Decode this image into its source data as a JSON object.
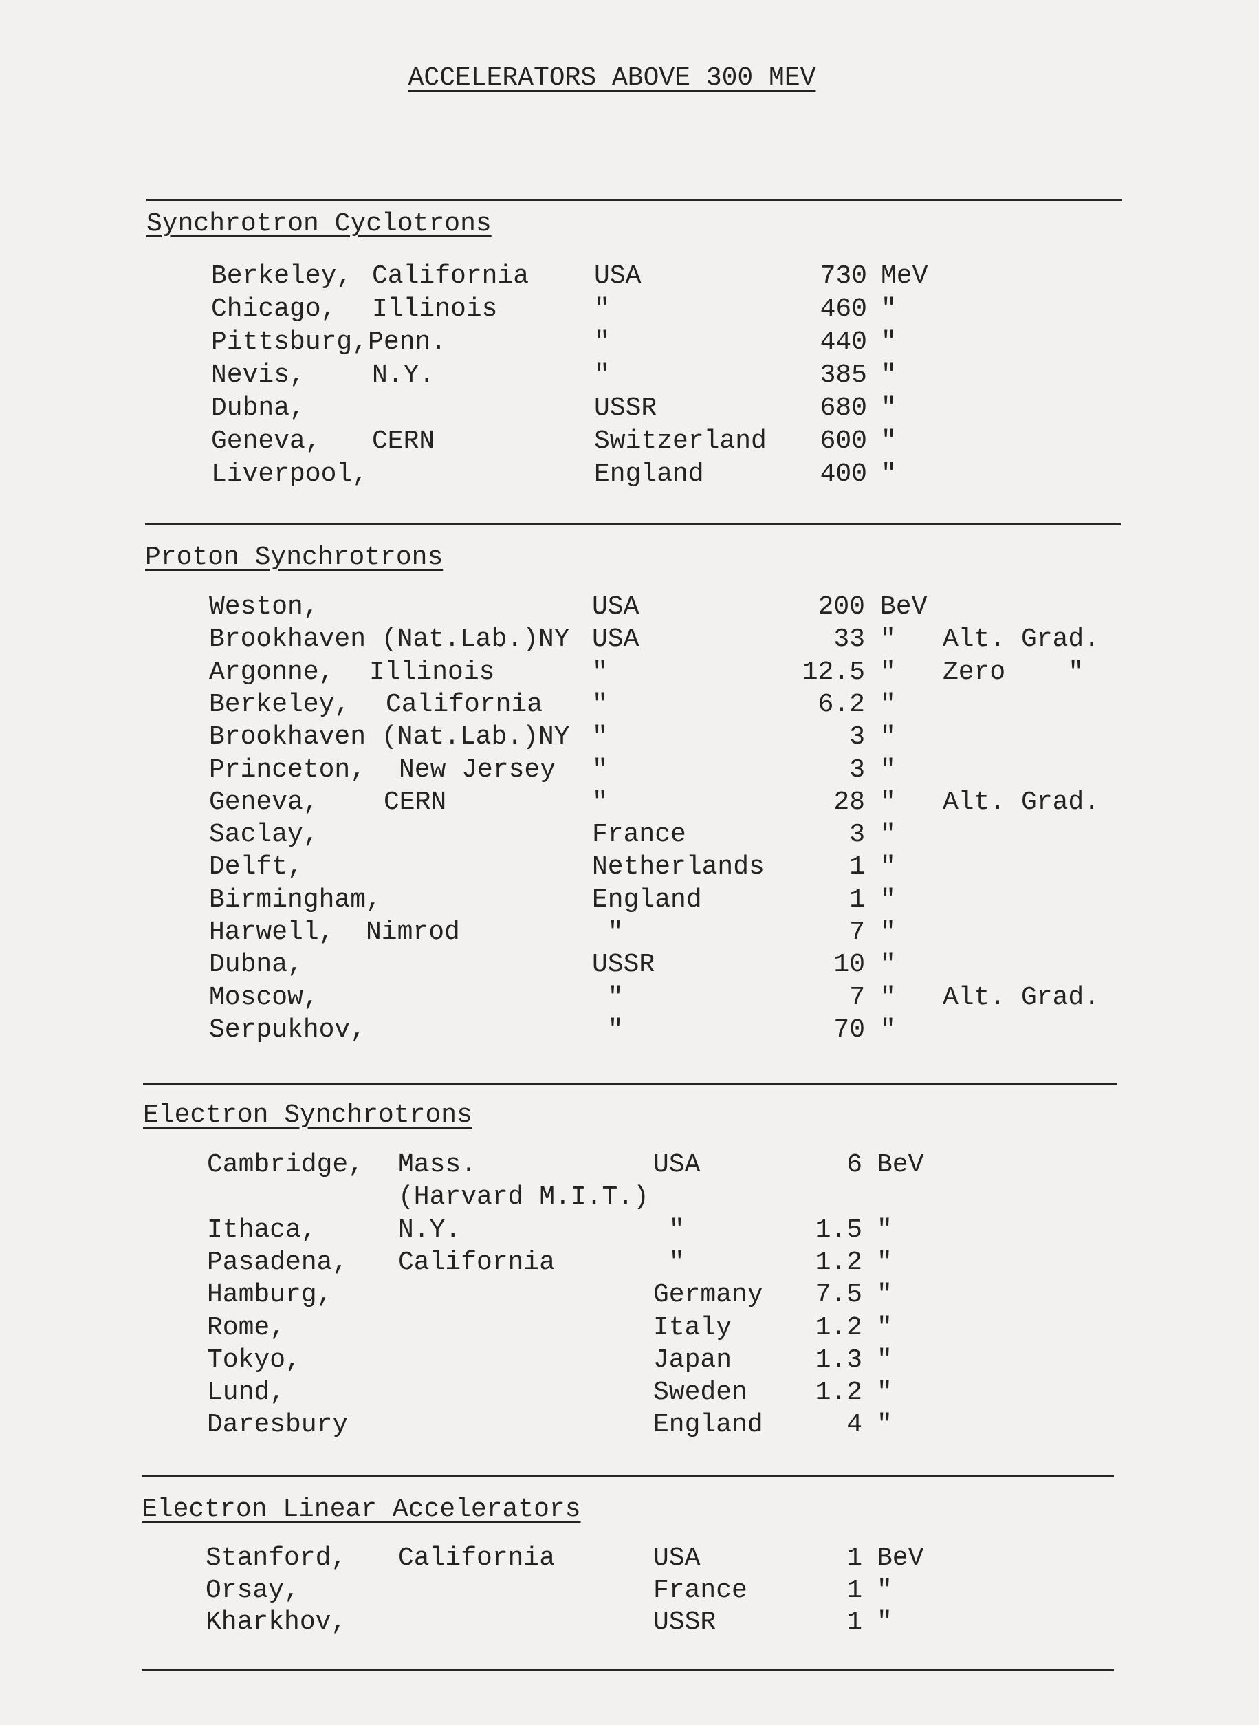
{
  "title": "ACCELERATORS ABOVE 300 MEV",
  "sections": [
    {
      "heading": "Synchrotron Cyclotrons",
      "rows": [
        {
          "place": "Berkeley,",
          "sub": "California",
          "country": "USA",
          "value": "730",
          "unit": "MeV",
          "note": ""
        },
        {
          "place": "Chicago,",
          "sub": "Illinois",
          "country": "\"",
          "value": "460",
          "unit": "\"",
          "note": ""
        },
        {
          "place": "Pittsburg,Penn.",
          "sub": "",
          "country": "\"",
          "value": "440",
          "unit": "\"",
          "note": ""
        },
        {
          "place": "Nevis,",
          "sub": "N.Y.",
          "country": "\"",
          "value": "385",
          "unit": "\"",
          "note": ""
        },
        {
          "place": "Dubna,",
          "sub": "",
          "country": "USSR",
          "value": "680",
          "unit": "\"",
          "note": ""
        },
        {
          "place": "Geneva,",
          "sub": "CERN",
          "country": "Switzerland",
          "value": "600",
          "unit": "\"",
          "note": ""
        },
        {
          "place": "Liverpool,",
          "sub": "",
          "country": "England",
          "value": "400",
          "unit": "\"",
          "note": ""
        }
      ]
    },
    {
      "heading": "Proton Synchrotrons",
      "rows": [
        {
          "place": "Weston,",
          "sub": "",
          "country": "USA",
          "value": "200",
          "unit": "BeV",
          "note": ""
        },
        {
          "place": "Brookhaven (Nat.Lab.)NY",
          "sub": "",
          "country": "USA",
          "value": "33",
          "unit": "\"",
          "note": "Alt. Grad."
        },
        {
          "place": "Argonne,",
          "sub": "Illinois",
          "country": "\"",
          "value": "12.5",
          "unit": "\"",
          "note": "Zero    \""
        },
        {
          "place": "Berkeley,",
          "sub": "California",
          "country": "\"",
          "value": "6.2",
          "unit": "\"",
          "note": ""
        },
        {
          "place": "Brookhaven (Nat.Lab.)NY",
          "sub": "",
          "country": "\"",
          "value": "3",
          "unit": "\"",
          "note": ""
        },
        {
          "place": "Princeton,",
          "sub": "New Jersey",
          "country": "\"",
          "value": "3",
          "unit": "\"",
          "note": ""
        },
        {
          "place": "Geneva,",
          "sub": "CERN",
          "country": "\"",
          "value": "28",
          "unit": "\"",
          "note": "Alt. Grad."
        },
        {
          "place": "Saclay,",
          "sub": "",
          "country": "France",
          "value": "3",
          "unit": "\"",
          "note": ""
        },
        {
          "place": "Delft,",
          "sub": "",
          "country": "Netherlands",
          "value": "1",
          "unit": "\"",
          "note": ""
        },
        {
          "place": "Birmingham,",
          "sub": "",
          "country": "England",
          "value": "1",
          "unit": "\"",
          "note": ""
        },
        {
          "place": "Harwell,",
          "sub": "Nimrod",
          "country": " \"",
          "value": "7",
          "unit": "\"",
          "note": ""
        },
        {
          "place": "Dubna,",
          "sub": "",
          "country": "USSR",
          "value": "10",
          "unit": "\"",
          "note": ""
        },
        {
          "place": "Moscow,",
          "sub": "",
          "country": " \"",
          "value": "7",
          "unit": "\"",
          "note": "Alt. Grad."
        },
        {
          "place": "Serpukhov,",
          "sub": "",
          "country": " \"",
          "value": "70",
          "unit": "\"",
          "note": ""
        }
      ]
    },
    {
      "heading": "Electron Synchrotrons",
      "rows": [
        {
          "place": "Cambridge,",
          "sub": "Mass.",
          "country": "USA",
          "value": "6",
          "unit": "BeV",
          "note": ""
        },
        {
          "place": "",
          "sub": "(Harvard M.I.T.)",
          "country": "",
          "value": "",
          "unit": "",
          "note": ""
        },
        {
          "place": "Ithaca,",
          "sub": "N.Y.",
          "country": " \"",
          "value": "1.5",
          "unit": "\"",
          "note": ""
        },
        {
          "place": "Pasadena,",
          "sub": "California",
          "country": " \"",
          "value": "1.2",
          "unit": "\"",
          "note": ""
        },
        {
          "place": "Hamburg,",
          "sub": "",
          "country": "Germany",
          "value": "7.5",
          "unit": "\"",
          "note": ""
        },
        {
          "place": "Rome,",
          "sub": "",
          "country": "Italy",
          "value": "1.2",
          "unit": "\"",
          "note": ""
        },
        {
          "place": "Tokyo,",
          "sub": "",
          "country": "Japan",
          "value": "1.3",
          "unit": "\"",
          "note": ""
        },
        {
          "place": "Lund,",
          "sub": "",
          "country": "Sweden",
          "value": "1.2",
          "unit": "\"",
          "note": ""
        },
        {
          "place": "Daresbury",
          "sub": "",
          "country": "England",
          "value": "4",
          "unit": "\"",
          "note": ""
        }
      ]
    },
    {
      "heading": "Electron Linear Accelerators",
      "rows": [
        {
          "place": "Stanford,",
          "sub": "California",
          "country": "USA",
          "value": "1",
          "unit": "BeV",
          "note": ""
        },
        {
          "place": "Orsay,",
          "sub": "",
          "country": "France",
          "value": "1",
          "unit": "\"",
          "note": ""
        },
        {
          "place": "Kharkhov,",
          "sub": "",
          "country": "USSR",
          "value": "1",
          "unit": "\"",
          "note": ""
        }
      ]
    }
  ]
}
